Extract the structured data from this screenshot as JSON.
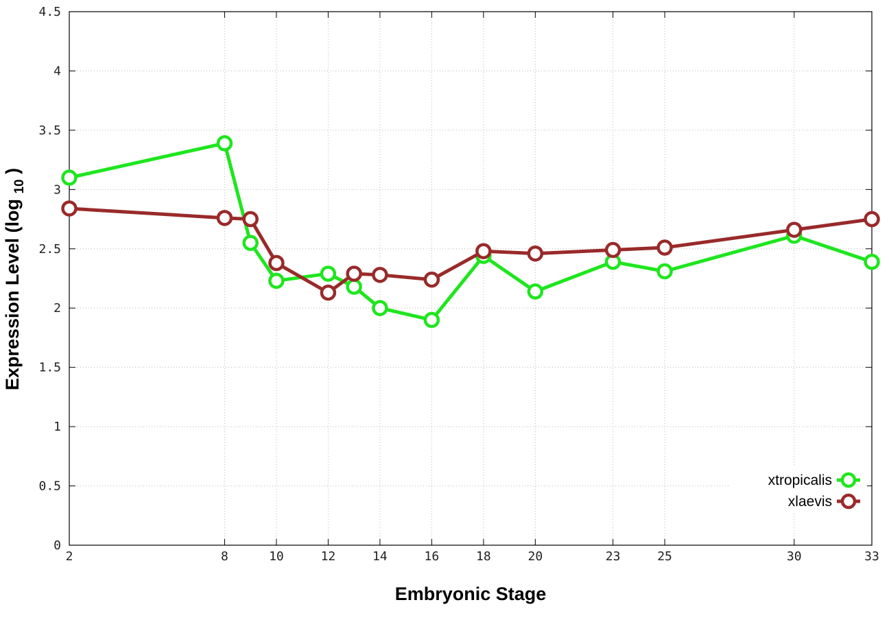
{
  "chart_data": {
    "type": "line",
    "title": "",
    "xlabel": "Embryonic Stage",
    "ylabel": "Expression Level",
    "ylabel_sub": "10",
    "ylabel_prefix": "(log",
    "ylabel_suffix": ")",
    "x_ticks": [
      2,
      8,
      10,
      12,
      14,
      16,
      18,
      20,
      23,
      25,
      30,
      33
    ],
    "y_ticks": [
      "0",
      "0.5",
      "1",
      "1.5",
      "2",
      "2.5",
      "3",
      "3.5",
      "4",
      "4.5"
    ],
    "ylim": [
      0,
      4.5
    ],
    "grid": true,
    "legend_position": "bottom-right",
    "series": [
      {
        "name": "xtropicalis",
        "color": "#1ee61e",
        "points": [
          {
            "x": 2,
            "y": 3.1
          },
          {
            "x": 8,
            "y": 3.39
          },
          {
            "x": 9,
            "y": 2.55
          },
          {
            "x": 10,
            "y": 2.23
          },
          {
            "x": 12,
            "y": 2.29
          },
          {
            "x": 13,
            "y": 2.18
          },
          {
            "x": 14,
            "y": 2.0
          },
          {
            "x": 16,
            "y": 1.9
          },
          {
            "x": 18,
            "y": 2.44
          },
          {
            "x": 20,
            "y": 2.14
          },
          {
            "x": 23,
            "y": 2.39
          },
          {
            "x": 25,
            "y": 2.31
          },
          {
            "x": 30,
            "y": 2.61
          },
          {
            "x": 33,
            "y": 2.39
          }
        ]
      },
      {
        "name": "xlaevis",
        "color": "#992a2a",
        "points": [
          {
            "x": 2,
            "y": 2.84
          },
          {
            "x": 8,
            "y": 2.76
          },
          {
            "x": 9,
            "y": 2.75
          },
          {
            "x": 10,
            "y": 2.38
          },
          {
            "x": 12,
            "y": 2.13
          },
          {
            "x": 13,
            "y": 2.29
          },
          {
            "x": 14,
            "y": 2.28
          },
          {
            "x": 16,
            "y": 2.24
          },
          {
            "x": 18,
            "y": 2.48
          },
          {
            "x": 20,
            "y": 2.46
          },
          {
            "x": 23,
            "y": 2.49
          },
          {
            "x": 25,
            "y": 2.51
          },
          {
            "x": 30,
            "y": 2.66
          },
          {
            "x": 33,
            "y": 2.75
          }
        ]
      }
    ]
  }
}
